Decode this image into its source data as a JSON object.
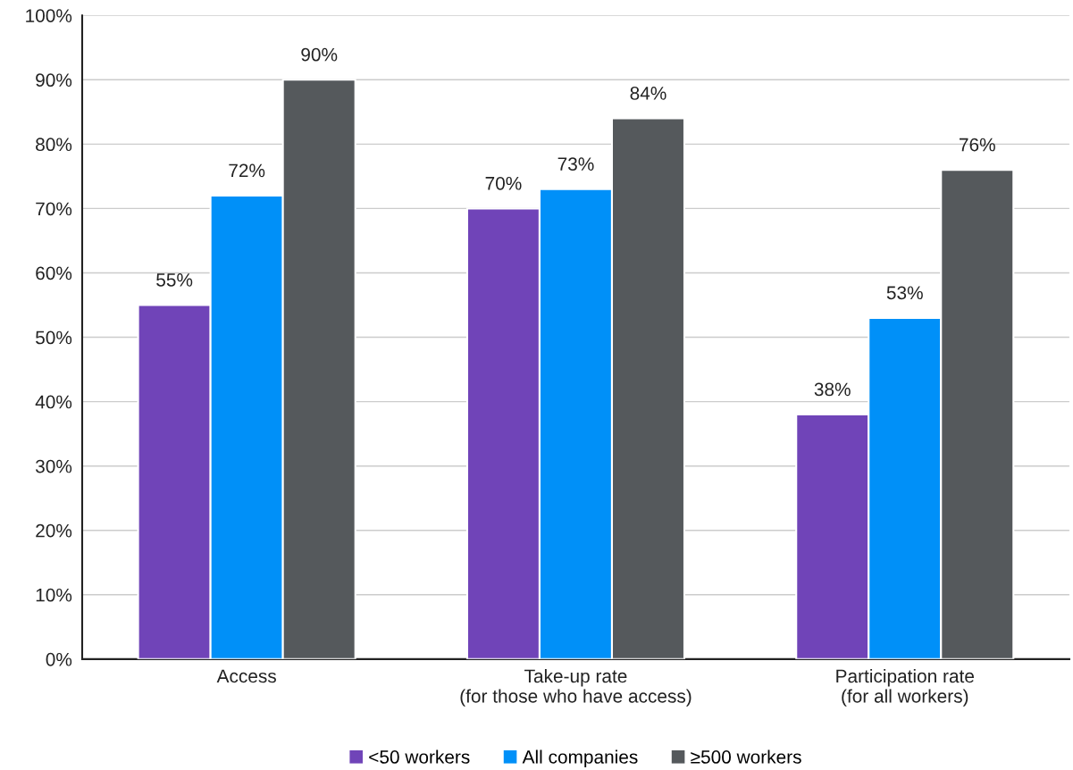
{
  "chart_data": {
    "type": "bar",
    "categories": [
      "Access",
      "Take-up rate\n(for those who have access)",
      "Participation rate\n(for all workers)"
    ],
    "series": [
      {
        "name": "<50 workers",
        "color": "#7044b8",
        "values": [
          55,
          70,
          38
        ],
        "value_labels": [
          "55%",
          "70%",
          "38%"
        ]
      },
      {
        "name": "All companies",
        "color": "#0090f8",
        "values": [
          72,
          73,
          53
        ],
        "value_labels": [
          "72%",
          "73%",
          "53%"
        ]
      },
      {
        "name": "≥500 workers",
        "color": "#55595c",
        "values": [
          90,
          84,
          76
        ],
        "value_labels": [
          "90%",
          "84%",
          "76%"
        ]
      }
    ],
    "ylim": [
      0,
      100
    ],
    "yticks": [
      {
        "value": 0,
        "label": "0%"
      },
      {
        "value": 10,
        "label": "10%"
      },
      {
        "value": 20,
        "label": "20%"
      },
      {
        "value": 30,
        "label": "30%"
      },
      {
        "value": 40,
        "label": "40%"
      },
      {
        "value": 50,
        "label": "50%"
      },
      {
        "value": 60,
        "label": "60%"
      },
      {
        "value": 70,
        "label": "70%"
      },
      {
        "value": 80,
        "label": "80%"
      },
      {
        "value": 90,
        "label": "90%"
      },
      {
        "value": 100,
        "label": "100%"
      }
    ],
    "grid": "y",
    "legend": "bottom"
  }
}
